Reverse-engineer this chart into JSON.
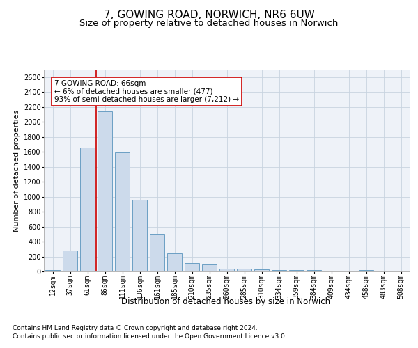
{
  "title_line1": "7, GOWING ROAD, NORWICH, NR6 6UW",
  "title_line2": "Size of property relative to detached houses in Norwich",
  "xlabel": "Distribution of detached houses by size in Norwich",
  "ylabel": "Number of detached properties",
  "categories": [
    "12sqm",
    "37sqm",
    "61sqm",
    "86sqm",
    "111sqm",
    "136sqm",
    "161sqm",
    "185sqm",
    "210sqm",
    "235sqm",
    "260sqm",
    "285sqm",
    "310sqm",
    "334sqm",
    "359sqm",
    "384sqm",
    "409sqm",
    "434sqm",
    "458sqm",
    "483sqm",
    "508sqm"
  ],
  "values": [
    20,
    280,
    1660,
    2140,
    1590,
    960,
    500,
    245,
    115,
    95,
    40,
    40,
    25,
    20,
    15,
    20,
    5,
    5,
    15,
    5,
    5
  ],
  "bar_color": "#ccdaeb",
  "bar_edge_color": "#6b9fc4",
  "vline_x": 2.5,
  "vline_color": "#cc0000",
  "annotation_text": "7 GOWING ROAD: 66sqm\n← 6% of detached houses are smaller (477)\n93% of semi-detached houses are larger (7,212) →",
  "annotation_box_color": "white",
  "annotation_box_edge_color": "#cc0000",
  "ylim": [
    0,
    2700
  ],
  "yticks": [
    0,
    200,
    400,
    600,
    800,
    1000,
    1200,
    1400,
    1600,
    1800,
    2000,
    2200,
    2400,
    2600
  ],
  "grid_color": "#c8d4e0",
  "background_color": "#eef2f8",
  "footer_line1": "Contains HM Land Registry data © Crown copyright and database right 2024.",
  "footer_line2": "Contains public sector information licensed under the Open Government Licence v3.0.",
  "title_fontsize": 11,
  "subtitle_fontsize": 9.5,
  "ylabel_fontsize": 8,
  "xlabel_fontsize": 8.5,
  "tick_fontsize": 7,
  "footer_fontsize": 6.5,
  "annot_fontsize": 7.5
}
